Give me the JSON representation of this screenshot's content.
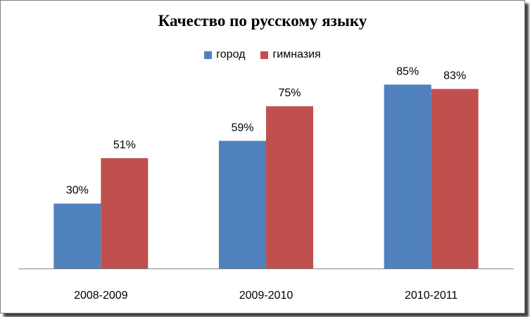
{
  "chart_data": {
    "type": "bar",
    "title": "Качество по русскому языку",
    "categories": [
      "2008-2009",
      "2009-2010",
      "2010-2011"
    ],
    "series": [
      {
        "name": "город",
        "values": [
          30,
          59,
          85
        ],
        "labels": [
          "30%",
          "59%",
          "85%"
        ],
        "color": "#4f81bd"
      },
      {
        "name": "гимназия",
        "values": [
          51,
          75,
          83
        ],
        "labels": [
          "51%",
          "75%",
          "83%"
        ],
        "color": "#c0504d"
      }
    ],
    "ylim": [
      0,
      90
    ],
    "grid": false,
    "legend": "top"
  }
}
